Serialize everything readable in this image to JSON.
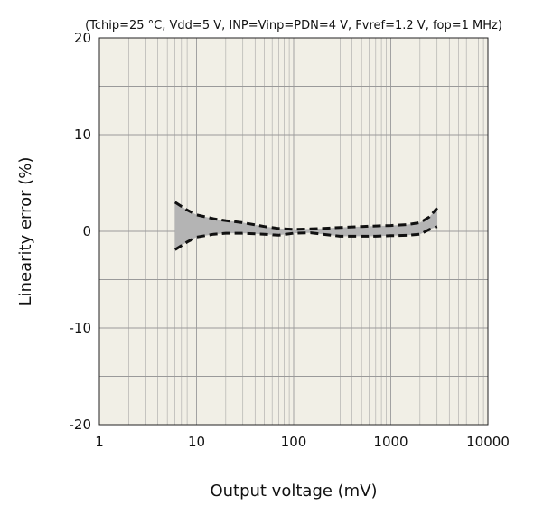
{
  "chart_data": {
    "type": "area",
    "title": "",
    "subtitle": "(Tchip=25 °C, Vdd=5 V, INP=Vinp=PDN=4 V, Fvref=1.2 V, fop=1 MHz)",
    "xlabel": "Output voltage (mV)",
    "ylabel": "Linearity error (%)",
    "xscale": "log",
    "xlim": [
      1,
      10000
    ],
    "ylim": [
      -20,
      20
    ],
    "xticks": [
      1,
      10,
      100,
      1000,
      10000
    ],
    "xtick_labels": [
      "1",
      "10",
      "100",
      "1000",
      "10000"
    ],
    "yticks": [
      -20,
      -10,
      0,
      10,
      20
    ],
    "ytick_labels": [
      "-20",
      "-10",
      "0",
      "10",
      "20"
    ],
    "grid": true,
    "colors": {
      "background": "#f1efe6",
      "grid": "#9a9a9a",
      "band": "#b4b4b4",
      "line": "#111111"
    },
    "series": [
      {
        "line_style": "dashed",
        "x": [
          6,
          8,
          10,
          15,
          20,
          30,
          50,
          70,
          100,
          150,
          200,
          300,
          500,
          700,
          1000,
          1500,
          2000,
          2500,
          3000
        ],
        "y": [
          3.0,
          2.2,
          1.7,
          1.3,
          1.1,
          0.9,
          0.5,
          0.3,
          0.2,
          0.25,
          0.3,
          0.4,
          0.5,
          0.55,
          0.6,
          0.7,
          0.9,
          1.5,
          2.4
        ]
      },
      {
        "line_style": "dashed",
        "x": [
          6,
          8,
          10,
          15,
          20,
          30,
          50,
          70,
          100,
          150,
          200,
          300,
          500,
          700,
          1000,
          1500,
          2000,
          2500,
          3000
        ],
        "y": [
          -1.9,
          -1.1,
          -0.6,
          -0.3,
          -0.2,
          -0.2,
          -0.3,
          -0.4,
          -0.2,
          -0.15,
          -0.3,
          -0.5,
          -0.5,
          -0.5,
          -0.45,
          -0.4,
          -0.3,
          0.2,
          0.5
        ]
      }
    ]
  }
}
